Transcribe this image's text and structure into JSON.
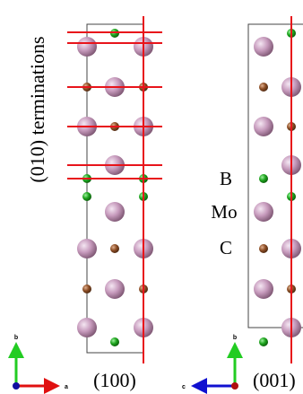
{
  "side_label": "(010) terminations",
  "legend": {
    "items": [
      "B",
      "Mo",
      "C"
    ]
  },
  "panels": [
    {
      "label": "(100)",
      "axes": {
        "vertical": "b",
        "horizontal": "a"
      }
    },
    {
      "label": "(001)",
      "axes": {
        "vertical": "b",
        "horizontal": "c"
      }
    }
  ]
}
